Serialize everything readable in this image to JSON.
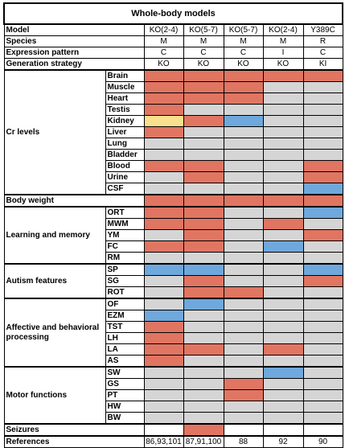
{
  "title": "Whole-body models",
  "palette": {
    "r": "#e07562",
    "g": "#d5d5d5",
    "b": "#6fa8dc",
    "y": "#f8e08e"
  },
  "columns": [
    "KO(2-4)",
    "KO(5-7)",
    "KO(5-7)",
    "KO(2-4)",
    "Y389C"
  ],
  "header_rows": [
    {
      "label": "Model",
      "values": [
        "KO(2-4)",
        "KO(5-7)",
        "KO(5-7)",
        "KO(2-4)",
        "Y389C"
      ]
    },
    {
      "label": "Species",
      "values": [
        "M",
        "M",
        "M",
        "M",
        "R"
      ]
    },
    {
      "label": "Expression pattern",
      "values": [
        "C",
        "C",
        "C",
        "I",
        "C"
      ]
    },
    {
      "label": "Generation strategy",
      "values": [
        "KO",
        "KO",
        "KO",
        "KO",
        "KI"
      ]
    }
  ],
  "sections": [
    {
      "label": "Cr levels",
      "rows": [
        {
          "label": "Brain",
          "cells": [
            "r",
            "r",
            "r",
            "r",
            "r"
          ]
        },
        {
          "label": "Muscle",
          "cells": [
            "r",
            "r",
            "r",
            "g",
            "g"
          ]
        },
        {
          "label": "Heart",
          "cells": [
            "r",
            "r",
            "r",
            "g",
            "g"
          ]
        },
        {
          "label": "Testis",
          "cells": [
            "r",
            "g",
            "g",
            "g",
            "g"
          ]
        },
        {
          "label": "Kidney",
          "cells": [
            "y",
            "r",
            "b",
            "g",
            "g"
          ]
        },
        {
          "label": "Liver",
          "cells": [
            "r",
            "g",
            "g",
            "g",
            "g"
          ]
        },
        {
          "label": "Lung",
          "cells": [
            "g",
            "g",
            "g",
            "g",
            "g"
          ]
        },
        {
          "label": "Bladder",
          "cells": [
            "g",
            "g",
            "g",
            "g",
            "g"
          ]
        },
        {
          "label": "Blood",
          "cells": [
            "r",
            "r",
            "g",
            "g",
            "r"
          ]
        },
        {
          "label": "Urine",
          "cells": [
            "g",
            "r",
            "g",
            "g",
            "r"
          ]
        },
        {
          "label": "CSF",
          "cells": [
            "g",
            "g",
            "g",
            "g",
            "b"
          ]
        }
      ]
    },
    {
      "label": "Body weight",
      "rows": [
        {
          "label": "",
          "cells": [
            "r",
            "r",
            "r",
            "r",
            "r"
          ]
        }
      ]
    },
    {
      "label": "Learning and memory",
      "rows": [
        {
          "label": "ORT",
          "cells": [
            "r",
            "r",
            "g",
            "g",
            "b"
          ]
        },
        {
          "label": "MWM",
          "cells": [
            "r",
            "r",
            "g",
            "r",
            "g"
          ]
        },
        {
          "label": "YM",
          "cells": [
            "g",
            "r",
            "g",
            "g",
            "r"
          ]
        },
        {
          "label": "FC",
          "cells": [
            "r",
            "r",
            "g",
            "b",
            "g"
          ]
        },
        {
          "label": "RM",
          "cells": [
            "g",
            "g",
            "g",
            "g",
            "g"
          ]
        }
      ]
    },
    {
      "label": "Autism features",
      "rows": [
        {
          "label": "SP",
          "cells": [
            "b",
            "b",
            "g",
            "g",
            "b"
          ]
        },
        {
          "label": "SG",
          "cells": [
            "g",
            "r",
            "g",
            "g",
            "r"
          ]
        },
        {
          "label": "ROT",
          "cells": [
            "g",
            "r",
            "r",
            "g",
            "g"
          ]
        }
      ]
    },
    {
      "label": "Affective and behavioral processing",
      "rows": [
        {
          "label": "OF",
          "cells": [
            "g",
            "b",
            "g",
            "g",
            "g"
          ]
        },
        {
          "label": "EZM",
          "cells": [
            "b",
            "g",
            "g",
            "g",
            "g"
          ]
        },
        {
          "label": "TST",
          "cells": [
            "r",
            "g",
            "g",
            "g",
            "g"
          ]
        },
        {
          "label": "LH",
          "cells": [
            "r",
            "g",
            "g",
            "g",
            "g"
          ]
        },
        {
          "label": "LA",
          "cells": [
            "r",
            "r",
            "g",
            "r",
            "g"
          ]
        },
        {
          "label": "AS",
          "cells": [
            "r",
            "g",
            "g",
            "g",
            "g"
          ]
        }
      ]
    },
    {
      "label": "Motor functions",
      "rows": [
        {
          "label": "SW",
          "cells": [
            "g",
            "g",
            "g",
            "b",
            "g"
          ]
        },
        {
          "label": "GS",
          "cells": [
            "g",
            "g",
            "r",
            "g",
            "g"
          ]
        },
        {
          "label": "PT",
          "cells": [
            "g",
            "g",
            "r",
            "g",
            "g"
          ]
        },
        {
          "label": "HW",
          "cells": [
            "g",
            "g",
            "g",
            "g",
            "g"
          ]
        },
        {
          "label": "BW",
          "cells": [
            "g",
            "g",
            "g",
            "g",
            "g"
          ]
        }
      ]
    },
    {
      "label": "Seizures",
      "rows": [
        {
          "label": "",
          "cells": [
            "e",
            "r",
            "e",
            "e",
            "e"
          ]
        }
      ]
    }
  ],
  "references": {
    "label": "References",
    "values": [
      "86,93,101",
      "87,91,100",
      "88",
      "92",
      "90"
    ]
  }
}
